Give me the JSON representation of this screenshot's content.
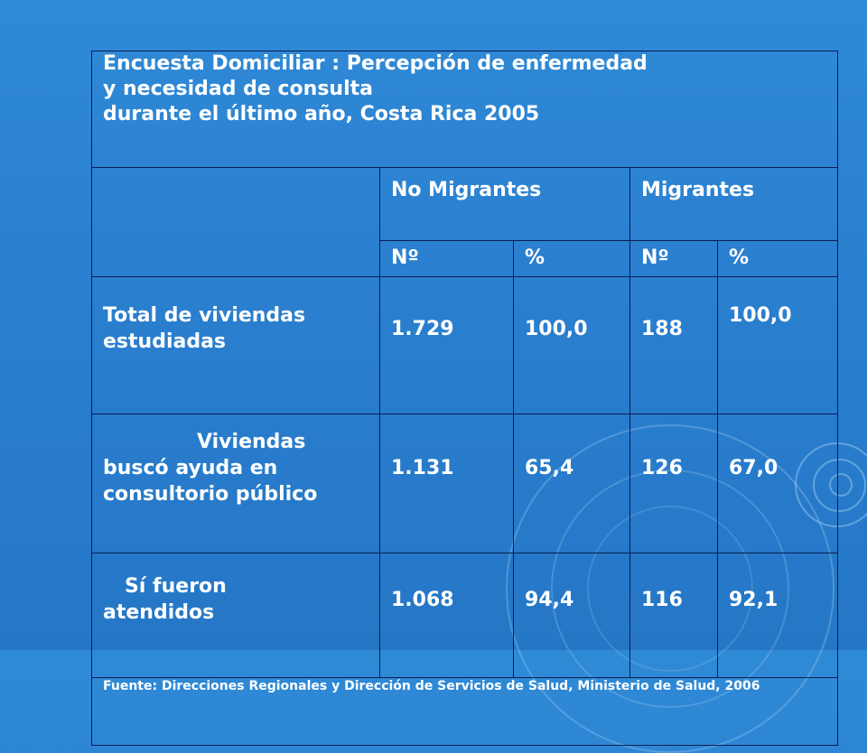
{
  "title": {
    "line1": "Encuesta Domiciliar : Percepción de enfermedad",
    "line2": "y necesidad de consulta",
    "line3": "durante el último año, Costa Rica 2005"
  },
  "headers": {
    "group1": "No Migrantes",
    "group2": "Migrantes",
    "sub": [
      "Nº",
      "%",
      "Nº",
      "%"
    ]
  },
  "rows": [
    {
      "label": "Total de viviendas estudiadas",
      "values": [
        "1.729",
        "100,0",
        "188",
        "100,0"
      ]
    },
    {
      "label_line1": "Viviendas",
      "label_rest": "buscó ayuda en consultorio público",
      "values": [
        "1.131",
        "65,4",
        "126",
        "67,0"
      ]
    },
    {
      "label_line1": "Sí fueron",
      "label_rest": "atendidos",
      "values": [
        "1.068",
        "94,4",
        "116",
        "92,1"
      ]
    }
  ],
  "source": "Fuente: Direcciones Regionales y Dirección de Servicios de Salud, Ministerio de Salud, 2006"
}
